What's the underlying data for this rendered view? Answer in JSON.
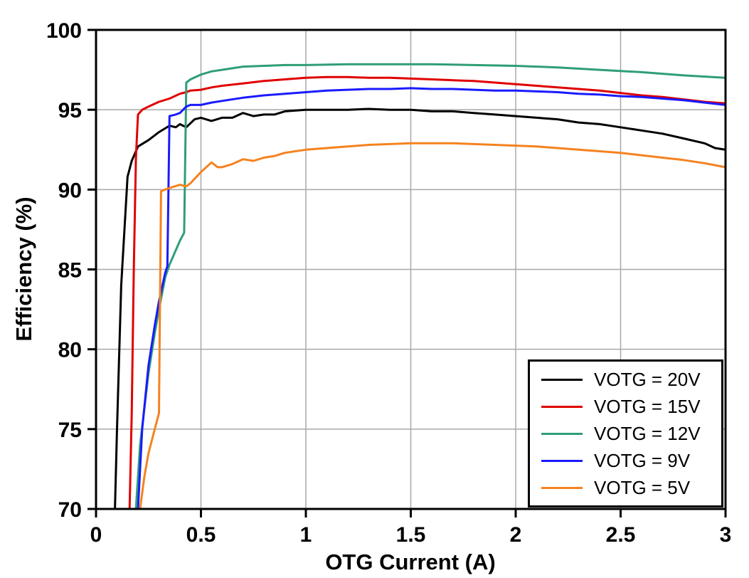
{
  "chart_data": {
    "type": "line",
    "title": "",
    "xlabel": "OTG Current (A)",
    "ylabel": "Efficiency (%)",
    "xlim": [
      0,
      3
    ],
    "ylim": [
      70,
      100
    ],
    "xticks": [
      0,
      0.5,
      1,
      1.5,
      2,
      2.5,
      3
    ],
    "yticks": [
      70,
      75,
      80,
      85,
      90,
      95,
      100
    ],
    "grid": true,
    "grid_color": "#a8a8a8",
    "axis_color": "#000000",
    "legend_position": "lower right",
    "series": [
      {
        "name": "VOTG = 20V",
        "color": "#000000",
        "points": [
          [
            0.09,
            70
          ],
          [
            0.1,
            75
          ],
          [
            0.12,
            84
          ],
          [
            0.15,
            90.8
          ],
          [
            0.17,
            91.8
          ],
          [
            0.2,
            92.7
          ],
          [
            0.25,
            93.1
          ],
          [
            0.3,
            93.6
          ],
          [
            0.35,
            94.0
          ],
          [
            0.38,
            93.9
          ],
          [
            0.4,
            94.1
          ],
          [
            0.43,
            93.9
          ],
          [
            0.47,
            94.4
          ],
          [
            0.5,
            94.5
          ],
          [
            0.55,
            94.3
          ],
          [
            0.6,
            94.5
          ],
          [
            0.65,
            94.5
          ],
          [
            0.7,
            94.8
          ],
          [
            0.75,
            94.6
          ],
          [
            0.8,
            94.7
          ],
          [
            0.85,
            94.7
          ],
          [
            0.9,
            94.9
          ],
          [
            1.0,
            95.0
          ],
          [
            1.1,
            95.0
          ],
          [
            1.2,
            95.0
          ],
          [
            1.3,
            95.05
          ],
          [
            1.4,
            95.0
          ],
          [
            1.5,
            95.0
          ],
          [
            1.6,
            94.9
          ],
          [
            1.7,
            94.9
          ],
          [
            1.8,
            94.8
          ],
          [
            1.9,
            94.7
          ],
          [
            2.0,
            94.6
          ],
          [
            2.1,
            94.5
          ],
          [
            2.2,
            94.4
          ],
          [
            2.3,
            94.2
          ],
          [
            2.4,
            94.1
          ],
          [
            2.5,
            93.9
          ],
          [
            2.6,
            93.7
          ],
          [
            2.7,
            93.5
          ],
          [
            2.8,
            93.2
          ],
          [
            2.9,
            92.9
          ],
          [
            2.95,
            92.6
          ],
          [
            3.0,
            92.5
          ]
        ]
      },
      {
        "name": "VOTG = 15V",
        "color": "#e00000",
        "points": [
          [
            0.16,
            70
          ],
          [
            0.17,
            76
          ],
          [
            0.18,
            85
          ],
          [
            0.19,
            92
          ],
          [
            0.2,
            94.7
          ],
          [
            0.22,
            95.0
          ],
          [
            0.25,
            95.2
          ],
          [
            0.3,
            95.5
          ],
          [
            0.35,
            95.7
          ],
          [
            0.4,
            96.0
          ],
          [
            0.43,
            96.1
          ],
          [
            0.45,
            96.2
          ],
          [
            0.5,
            96.25
          ],
          [
            0.55,
            96.4
          ],
          [
            0.6,
            96.5
          ],
          [
            0.7,
            96.65
          ],
          [
            0.8,
            96.8
          ],
          [
            0.9,
            96.9
          ],
          [
            1.0,
            97.0
          ],
          [
            1.1,
            97.05
          ],
          [
            1.2,
            97.05
          ],
          [
            1.3,
            97.0
          ],
          [
            1.4,
            97.0
          ],
          [
            1.5,
            96.95
          ],
          [
            1.6,
            96.9
          ],
          [
            1.7,
            96.85
          ],
          [
            1.8,
            96.8
          ],
          [
            1.9,
            96.7
          ],
          [
            2.0,
            96.6
          ],
          [
            2.1,
            96.5
          ],
          [
            2.2,
            96.4
          ],
          [
            2.3,
            96.3
          ],
          [
            2.4,
            96.2
          ],
          [
            2.5,
            96.05
          ],
          [
            2.6,
            95.9
          ],
          [
            2.7,
            95.8
          ],
          [
            2.8,
            95.65
          ],
          [
            2.9,
            95.5
          ],
          [
            3.0,
            95.4
          ]
        ]
      },
      {
        "name": "VOTG = 12V",
        "color": "#2f9e75",
        "points": [
          [
            0.19,
            70
          ],
          [
            0.21,
            74
          ],
          [
            0.25,
            78.5
          ],
          [
            0.28,
            81
          ],
          [
            0.3,
            82.5
          ],
          [
            0.33,
            84.5
          ],
          [
            0.35,
            85.3
          ],
          [
            0.38,
            86.2
          ],
          [
            0.4,
            86.8
          ],
          [
            0.42,
            87.3
          ],
          [
            0.43,
            96.7
          ],
          [
            0.45,
            96.9
          ],
          [
            0.5,
            97.2
          ],
          [
            0.55,
            97.4
          ],
          [
            0.6,
            97.5
          ],
          [
            0.7,
            97.7
          ],
          [
            0.8,
            97.75
          ],
          [
            0.9,
            97.8
          ],
          [
            1.0,
            97.8
          ],
          [
            1.2,
            97.85
          ],
          [
            1.4,
            97.85
          ],
          [
            1.6,
            97.85
          ],
          [
            1.8,
            97.8
          ],
          [
            2.0,
            97.75
          ],
          [
            2.1,
            97.7
          ],
          [
            2.2,
            97.65
          ],
          [
            2.4,
            97.5
          ],
          [
            2.6,
            97.35
          ],
          [
            2.8,
            97.15
          ],
          [
            3.0,
            97.0
          ]
        ]
      },
      {
        "name": "VOTG = 9V",
        "color": "#1a1aff",
        "points": [
          [
            0.2,
            70
          ],
          [
            0.22,
            75
          ],
          [
            0.25,
            79
          ],
          [
            0.28,
            81.5
          ],
          [
            0.3,
            83
          ],
          [
            0.33,
            84.8
          ],
          [
            0.34,
            85.2
          ],
          [
            0.35,
            94.6
          ],
          [
            0.38,
            94.7
          ],
          [
            0.4,
            94.8
          ],
          [
            0.43,
            95.2
          ],
          [
            0.45,
            95.3
          ],
          [
            0.5,
            95.3
          ],
          [
            0.55,
            95.45
          ],
          [
            0.6,
            95.55
          ],
          [
            0.7,
            95.75
          ],
          [
            0.8,
            95.9
          ],
          [
            0.9,
            96.0
          ],
          [
            1.0,
            96.1
          ],
          [
            1.1,
            96.2
          ],
          [
            1.2,
            96.25
          ],
          [
            1.3,
            96.3
          ],
          [
            1.4,
            96.3
          ],
          [
            1.5,
            96.35
          ],
          [
            1.6,
            96.3
          ],
          [
            1.7,
            96.3
          ],
          [
            1.8,
            96.25
          ],
          [
            1.9,
            96.2
          ],
          [
            2.0,
            96.2
          ],
          [
            2.1,
            96.15
          ],
          [
            2.2,
            96.1
          ],
          [
            2.3,
            96.0
          ],
          [
            2.4,
            95.95
          ],
          [
            2.5,
            95.85
          ],
          [
            2.6,
            95.8
          ],
          [
            2.7,
            95.7
          ],
          [
            2.8,
            95.6
          ],
          [
            2.9,
            95.45
          ],
          [
            3.0,
            95.3
          ]
        ]
      },
      {
        "name": "VOTG = 5V",
        "color": "#f5821f",
        "points": [
          [
            0.21,
            70
          ],
          [
            0.23,
            72
          ],
          [
            0.25,
            73.5
          ],
          [
            0.28,
            75
          ],
          [
            0.3,
            76
          ],
          [
            0.31,
            89.9
          ],
          [
            0.33,
            90.0
          ],
          [
            0.35,
            90.1
          ],
          [
            0.4,
            90.3
          ],
          [
            0.43,
            90.2
          ],
          [
            0.45,
            90.4
          ],
          [
            0.5,
            91.1
          ],
          [
            0.55,
            91.7
          ],
          [
            0.58,
            91.4
          ],
          [
            0.6,
            91.4
          ],
          [
            0.65,
            91.6
          ],
          [
            0.7,
            91.9
          ],
          [
            0.75,
            91.8
          ],
          [
            0.8,
            92.0
          ],
          [
            0.85,
            92.1
          ],
          [
            0.9,
            92.3
          ],
          [
            1.0,
            92.5
          ],
          [
            1.1,
            92.6
          ],
          [
            1.2,
            92.7
          ],
          [
            1.3,
            92.8
          ],
          [
            1.4,
            92.85
          ],
          [
            1.5,
            92.9
          ],
          [
            1.6,
            92.9
          ],
          [
            1.7,
            92.9
          ],
          [
            1.8,
            92.85
          ],
          [
            1.9,
            92.8
          ],
          [
            2.0,
            92.75
          ],
          [
            2.1,
            92.7
          ],
          [
            2.2,
            92.6
          ],
          [
            2.3,
            92.5
          ],
          [
            2.4,
            92.4
          ],
          [
            2.5,
            92.3
          ],
          [
            2.6,
            92.15
          ],
          [
            2.7,
            92.0
          ],
          [
            2.8,
            91.85
          ],
          [
            2.9,
            91.65
          ],
          [
            3.0,
            91.4
          ]
        ]
      }
    ]
  }
}
